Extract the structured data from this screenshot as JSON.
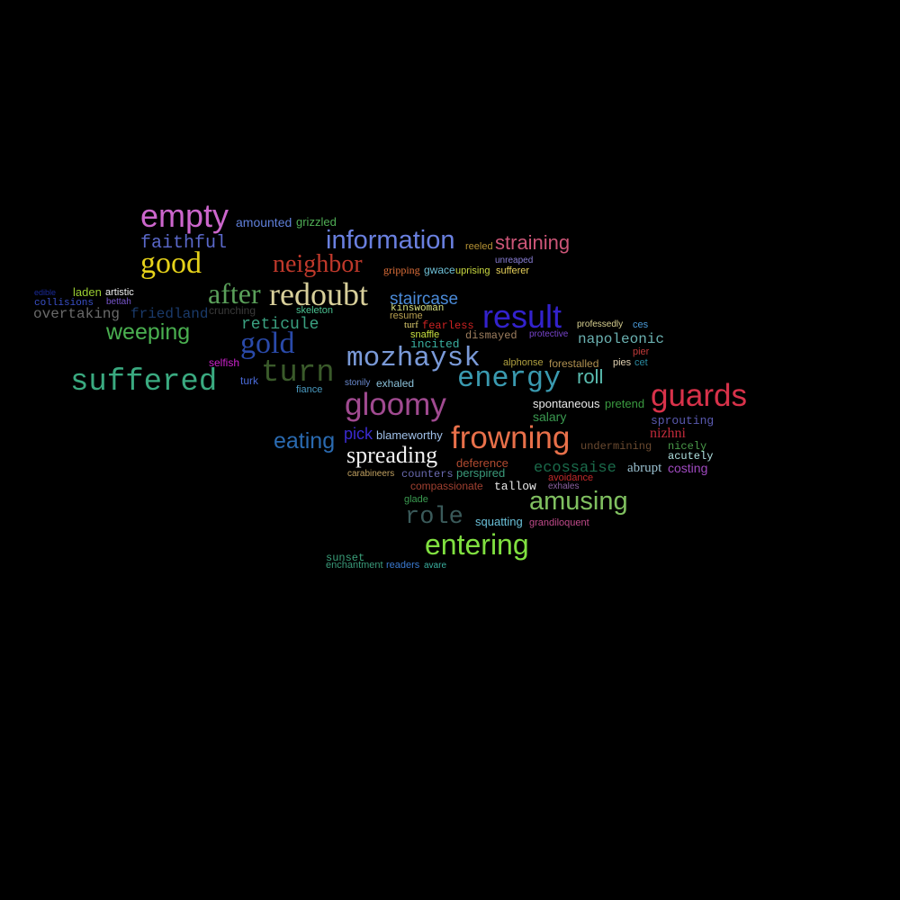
{
  "words": [
    {
      "text": "empty",
      "color": "#cc66cc"
    },
    {
      "text": "amounted",
      "color": "#5f7fd9"
    },
    {
      "text": "grizzled",
      "color": "#4fae55"
    },
    {
      "text": "faithful",
      "color": "#5a68c9"
    },
    {
      "text": "information",
      "color": "#6a80e0"
    },
    {
      "text": "reeled",
      "color": "#b59234"
    },
    {
      "text": "straining",
      "color": "#cc5577"
    },
    {
      "text": "good",
      "color": "#e6d21a"
    },
    {
      "text": "neighbor",
      "color": "#c0392b"
    },
    {
      "text": "unreaped",
      "color": "#8a7fd6"
    },
    {
      "text": "gripping",
      "color": "#e0703a"
    },
    {
      "text": "gwace",
      "color": "#6ec0d6"
    },
    {
      "text": "uprising",
      "color": "#c8d840"
    },
    {
      "text": "sufferer",
      "color": "#e8d25a"
    },
    {
      "text": "laden",
      "color": "#9acd32"
    },
    {
      "text": "artistic",
      "color": "#f0f0f0"
    },
    {
      "text": "edible",
      "color": "#1a2a9a"
    },
    {
      "text": "bettah",
      "color": "#7755cc"
    },
    {
      "text": "collisions",
      "color": "#3a50c8"
    },
    {
      "text": "after",
      "color": "#5aa05a"
    },
    {
      "text": "redoubt",
      "color": "#d8cf9a"
    },
    {
      "text": "staircase",
      "color": "#4a8ad8"
    },
    {
      "text": "kinswoman",
      "color": "#d8e080"
    },
    {
      "text": "overtaking",
      "color": "#6a6a6a"
    },
    {
      "text": "friedland",
      "color": "#1a3a6a"
    },
    {
      "text": "crunching",
      "color": "#3a3a3a"
    },
    {
      "text": "skeleton",
      "color": "#4ac090"
    },
    {
      "text": "resume",
      "color": "#b8a050"
    },
    {
      "text": "result",
      "color": "#3322cc"
    },
    {
      "text": "reticule",
      "color": "#3aa080"
    },
    {
      "text": "turf",
      "color": "#e0d070"
    },
    {
      "text": "fearless",
      "color": "#cc2222"
    },
    {
      "text": "professedly",
      "color": "#d8d090"
    },
    {
      "text": "ces",
      "color": "#4a9ad8"
    },
    {
      "text": "weeping",
      "color": "#4ab050"
    },
    {
      "text": "snaffle",
      "color": "#c8e040"
    },
    {
      "text": "dismayed",
      "color": "#a08060"
    },
    {
      "text": "protective",
      "color": "#7744cc"
    },
    {
      "text": "napoleonic",
      "color": "#6ab0b0"
    },
    {
      "text": "gold",
      "color": "#2a4aaa"
    },
    {
      "text": "incited",
      "color": "#3ab0a0"
    },
    {
      "text": "mozhaysk",
      "color": "#7a9ad8"
    },
    {
      "text": "pier",
      "color": "#c03a3a"
    },
    {
      "text": "selfish",
      "color": "#cc22cc"
    },
    {
      "text": "turn",
      "color": "#3a5a2a"
    },
    {
      "text": "alphonse",
      "color": "#b0a040"
    },
    {
      "text": "forestalled",
      "color": "#b09050"
    },
    {
      "text": "pies",
      "color": "#e0d0b0"
    },
    {
      "text": "cet",
      "color": "#2a8aa0"
    },
    {
      "text": "suffered",
      "color": "#3aaa80"
    },
    {
      "text": "turk",
      "color": "#4a6ad8"
    },
    {
      "text": "energy",
      "color": "#3a9ab0"
    },
    {
      "text": "roll",
      "color": "#5abcb0"
    },
    {
      "text": "stonily",
      "color": "#6a8ad0"
    },
    {
      "text": "exhaled",
      "color": "#8ac0d8"
    },
    {
      "text": "fiance",
      "color": "#4a9ac0"
    },
    {
      "text": "gloomy",
      "color": "#a04a90"
    },
    {
      "text": "guards",
      "color": "#d8324a"
    },
    {
      "text": "spontaneous",
      "color": "#e8e8e8"
    },
    {
      "text": "pretend",
      "color": "#3a9a40"
    },
    {
      "text": "salary",
      "color": "#3a9a50"
    },
    {
      "text": "sprouting",
      "color": "#5a5ab0"
    },
    {
      "text": "nizhni",
      "color": "#c02a3a"
    },
    {
      "text": "eating",
      "color": "#2a6ab0"
    },
    {
      "text": "pick",
      "color": "#3a2ad0"
    },
    {
      "text": "blameworthy",
      "color": "#a0c0e8"
    },
    {
      "text": "frowning",
      "color": "#e8704a"
    },
    {
      "text": "undermining",
      "color": "#6a4a30"
    },
    {
      "text": "nicely",
      "color": "#4a9a4a"
    },
    {
      "text": "acutely",
      "color": "#b0e0e0"
    },
    {
      "text": "spreading",
      "color": "#f0f0f0"
    },
    {
      "text": "deference",
      "color": "#b04a30"
    },
    {
      "text": "ecossaise",
      "color": "#1a6a4a"
    },
    {
      "text": "abrupt",
      "color": "#9ac0d0"
    },
    {
      "text": "costing",
      "color": "#a04ac0"
    },
    {
      "text": "carabineers",
      "color": "#c0a060"
    },
    {
      "text": "counters",
      "color": "#6a6ab0"
    },
    {
      "text": "perspired",
      "color": "#3a9a7a"
    },
    {
      "text": "avoidance",
      "color": "#c02a2a"
    },
    {
      "text": "compassionate",
      "color": "#a04030"
    },
    {
      "text": "tallow",
      "color": "#e8e8e8"
    },
    {
      "text": "exhales",
      "color": "#8a60a0"
    },
    {
      "text": "glade",
      "color": "#3a9a50"
    },
    {
      "text": "amusing",
      "color": "#80c060"
    },
    {
      "text": "role",
      "color": "#3a5a5a"
    },
    {
      "text": "squatting",
      "color": "#6ac0d8"
    },
    {
      "text": "grandiloquent",
      "color": "#c04a8a"
    },
    {
      "text": "entering",
      "color": "#80e040"
    },
    {
      "text": "sunset",
      "color": "#3aa07a"
    },
    {
      "text": "enchantment",
      "color": "#3a9a7a"
    },
    {
      "text": "readers",
      "color": "#3a7ad0"
    },
    {
      "text": "avare",
      "color": "#3ab0a0"
    }
  ]
}
